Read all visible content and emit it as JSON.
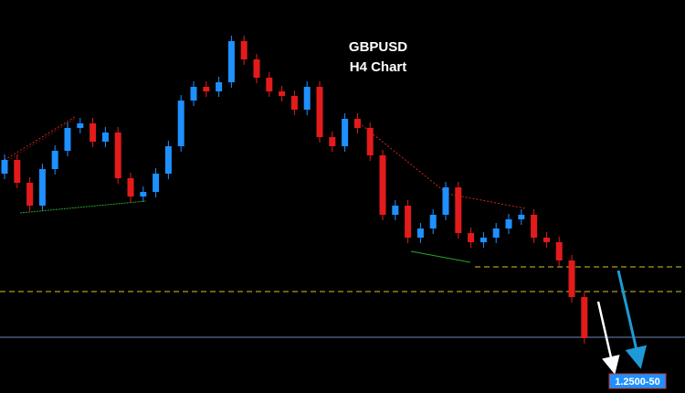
{
  "chart_data": {
    "type": "candlestick",
    "title": "GBPUSD",
    "subtitle": "H4 Chart",
    "open": [
      1.288,
      1.291,
      1.286,
      1.281,
      1.289,
      1.293,
      1.298,
      1.299,
      1.295,
      1.297,
      1.287,
      1.283,
      1.284,
      1.288,
      1.294,
      1.304,
      1.307,
      1.306,
      1.308,
      1.317,
      1.313,
      1.309,
      1.306,
      1.305,
      1.302,
      1.307,
      1.296,
      1.294,
      1.3,
      1.298,
      1.292,
      1.279,
      1.281,
      1.274,
      1.276,
      1.279,
      1.285,
      1.275,
      1.273,
      1.274,
      1.276,
      1.278,
      1.279,
      1.274,
      1.273,
      1.269,
      1.261
    ],
    "high": [
      1.2922,
      1.2922,
      1.2872,
      1.2902,
      1.2942,
      1.2992,
      1.3002,
      1.3002,
      1.2982,
      1.2982,
      1.2882,
      1.2852,
      1.2892,
      1.2952,
      1.3052,
      1.3082,
      1.3082,
      1.3092,
      1.3182,
      1.3182,
      1.3142,
      1.3102,
      1.3072,
      1.3062,
      1.3082,
      1.3082,
      1.2972,
      1.3012,
      1.3012,
      1.2992,
      1.2932,
      1.2822,
      1.2822,
      1.2772,
      1.2802,
      1.2862,
      1.2862,
      1.2762,
      1.2752,
      1.2772,
      1.2792,
      1.2802,
      1.2802,
      1.2752,
      1.2742,
      1.2702,
      1.2622
    ],
    "low": [
      1.2868,
      1.2848,
      1.2798,
      1.2798,
      1.2878,
      1.2918,
      1.2968,
      1.2938,
      1.2938,
      1.2858,
      1.2818,
      1.2818,
      1.2828,
      1.2868,
      1.2928,
      1.3028,
      1.3048,
      1.3048,
      1.3068,
      1.3118,
      1.3078,
      1.3048,
      1.3038,
      1.3008,
      1.3008,
      1.2948,
      1.2928,
      1.2928,
      1.2968,
      1.2908,
      1.2778,
      1.2778,
      1.2728,
      1.2728,
      1.2748,
      1.2778,
      1.2738,
      1.2718,
      1.2718,
      1.2728,
      1.2748,
      1.2768,
      1.2728,
      1.2718,
      1.2678,
      1.2598,
      1.2508
    ],
    "close": [
      1.291,
      1.286,
      1.281,
      1.289,
      1.293,
      1.298,
      1.299,
      1.295,
      1.297,
      1.287,
      1.283,
      1.284,
      1.288,
      1.294,
      1.304,
      1.307,
      1.306,
      1.308,
      1.317,
      1.313,
      1.309,
      1.306,
      1.305,
      1.302,
      1.307,
      1.296,
      1.294,
      1.3,
      1.298,
      1.292,
      1.279,
      1.281,
      1.274,
      1.276,
      1.279,
      1.285,
      1.275,
      1.273,
      1.274,
      1.276,
      1.278,
      1.279,
      1.274,
      1.273,
      1.269,
      1.261,
      1.252
    ],
    "up_color": "#1e90ff",
    "down_color": "#e31b1b",
    "ylim": [
      1.24,
      1.326
    ],
    "levels": [
      {
        "value": 1.2676,
        "color": "#d9c51c"
      },
      {
        "value": 1.2622,
        "color": "#d9c51c"
      },
      {
        "value": 1.2522,
        "color": "#6f86b8"
      }
    ],
    "annotation": "1.2500-50"
  }
}
